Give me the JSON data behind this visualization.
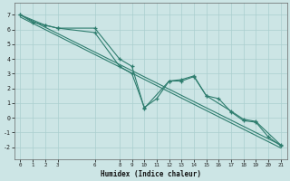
{
  "xlabel": "Humidex (Indice chaleur)",
  "bg_color": "#cce5e5",
  "line_color": "#2e7d6e",
  "grid_color": "#aacfcf",
  "xlim": [
    -0.5,
    21.5
  ],
  "ylim": [
    -2.8,
    7.8
  ],
  "xticks": [
    0,
    1,
    2,
    3,
    6,
    8,
    9,
    10,
    11,
    12,
    13,
    14,
    15,
    16,
    17,
    18,
    19,
    20,
    21
  ],
  "yticks": [
    -2,
    -1,
    0,
    1,
    2,
    3,
    4,
    5,
    6,
    7
  ],
  "series1_x": [
    0,
    1,
    2,
    3,
    6,
    8,
    9,
    10,
    11,
    12,
    13,
    14,
    15,
    16,
    17,
    18,
    19,
    20,
    21
  ],
  "series1_y": [
    7.0,
    6.5,
    6.3,
    6.1,
    5.8,
    3.5,
    3.0,
    0.7,
    1.3,
    2.5,
    2.5,
    2.8,
    1.5,
    1.3,
    0.4,
    -0.2,
    -0.3,
    -1.3,
    -1.9
  ],
  "series2_x": [
    0,
    2,
    3,
    6,
    8,
    9,
    10,
    12,
    13,
    14,
    15,
    17,
    18,
    19,
    21
  ],
  "series2_y": [
    7.0,
    6.3,
    6.1,
    6.1,
    4.0,
    3.5,
    0.65,
    2.5,
    2.6,
    2.85,
    1.5,
    0.45,
    -0.1,
    -0.25,
    -1.85
  ],
  "line1_x": [
    0,
    21
  ],
  "line1_y": [
    7.0,
    -1.85
  ],
  "line2_x": [
    0,
    21
  ],
  "line2_y": [
    6.85,
    -2.05
  ]
}
